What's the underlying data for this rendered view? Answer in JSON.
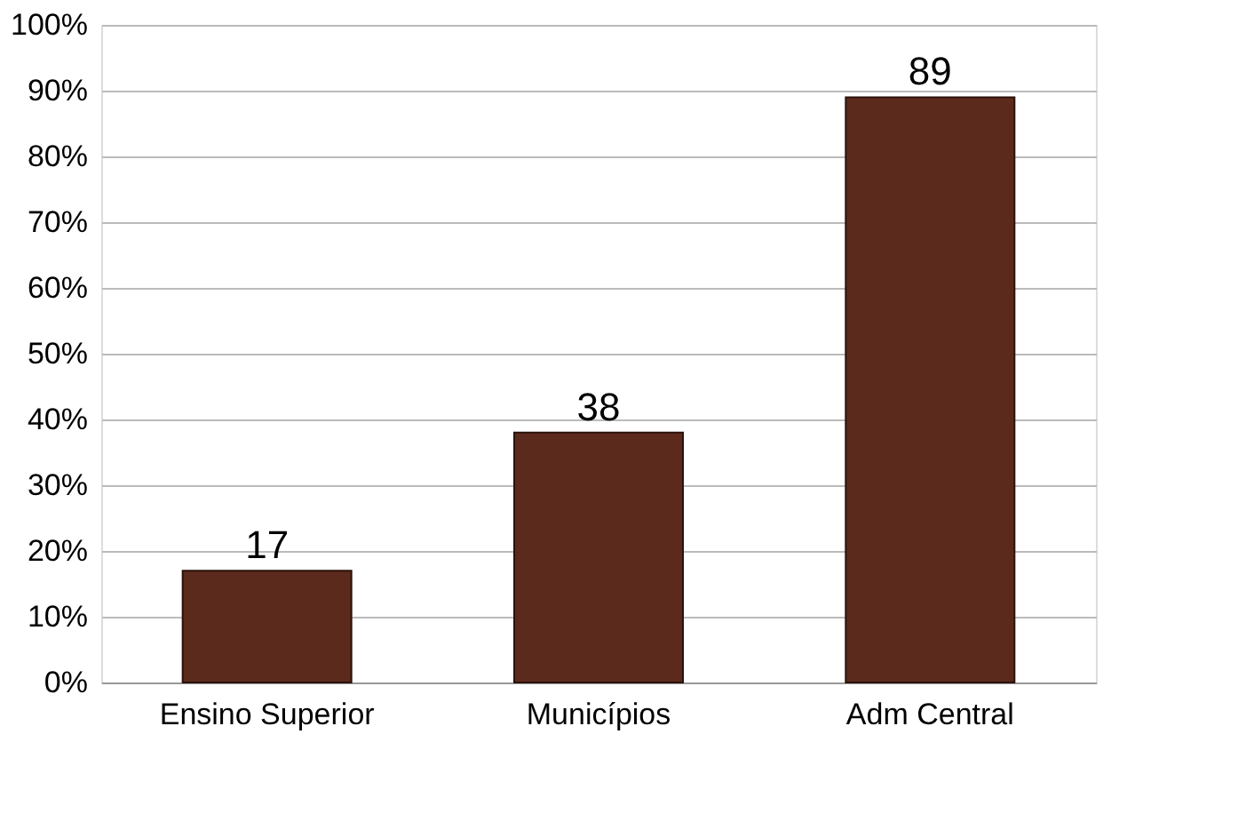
{
  "chart_data": {
    "type": "bar",
    "categories": [
      "Ensino Superior",
      "Municípios",
      "Adm Central"
    ],
    "values": [
      17,
      38,
      89
    ],
    "color": "#5c2a1c",
    "ylim": [
      0,
      100
    ],
    "yticks": [
      {
        "value": 0,
        "label": "0%"
      },
      {
        "value": 10,
        "label": "10%"
      },
      {
        "value": 20,
        "label": "20%"
      },
      {
        "value": 30,
        "label": "30%"
      },
      {
        "value": 40,
        "label": "40%"
      },
      {
        "value": 50,
        "label": "50%"
      },
      {
        "value": 60,
        "label": "60%"
      },
      {
        "value": 70,
        "label": "70%"
      },
      {
        "value": 80,
        "label": "80%"
      },
      {
        "value": 90,
        "label": "90%"
      },
      {
        "value": 100,
        "label": "100%"
      }
    ],
    "grid": "y",
    "data_labels": true
  }
}
